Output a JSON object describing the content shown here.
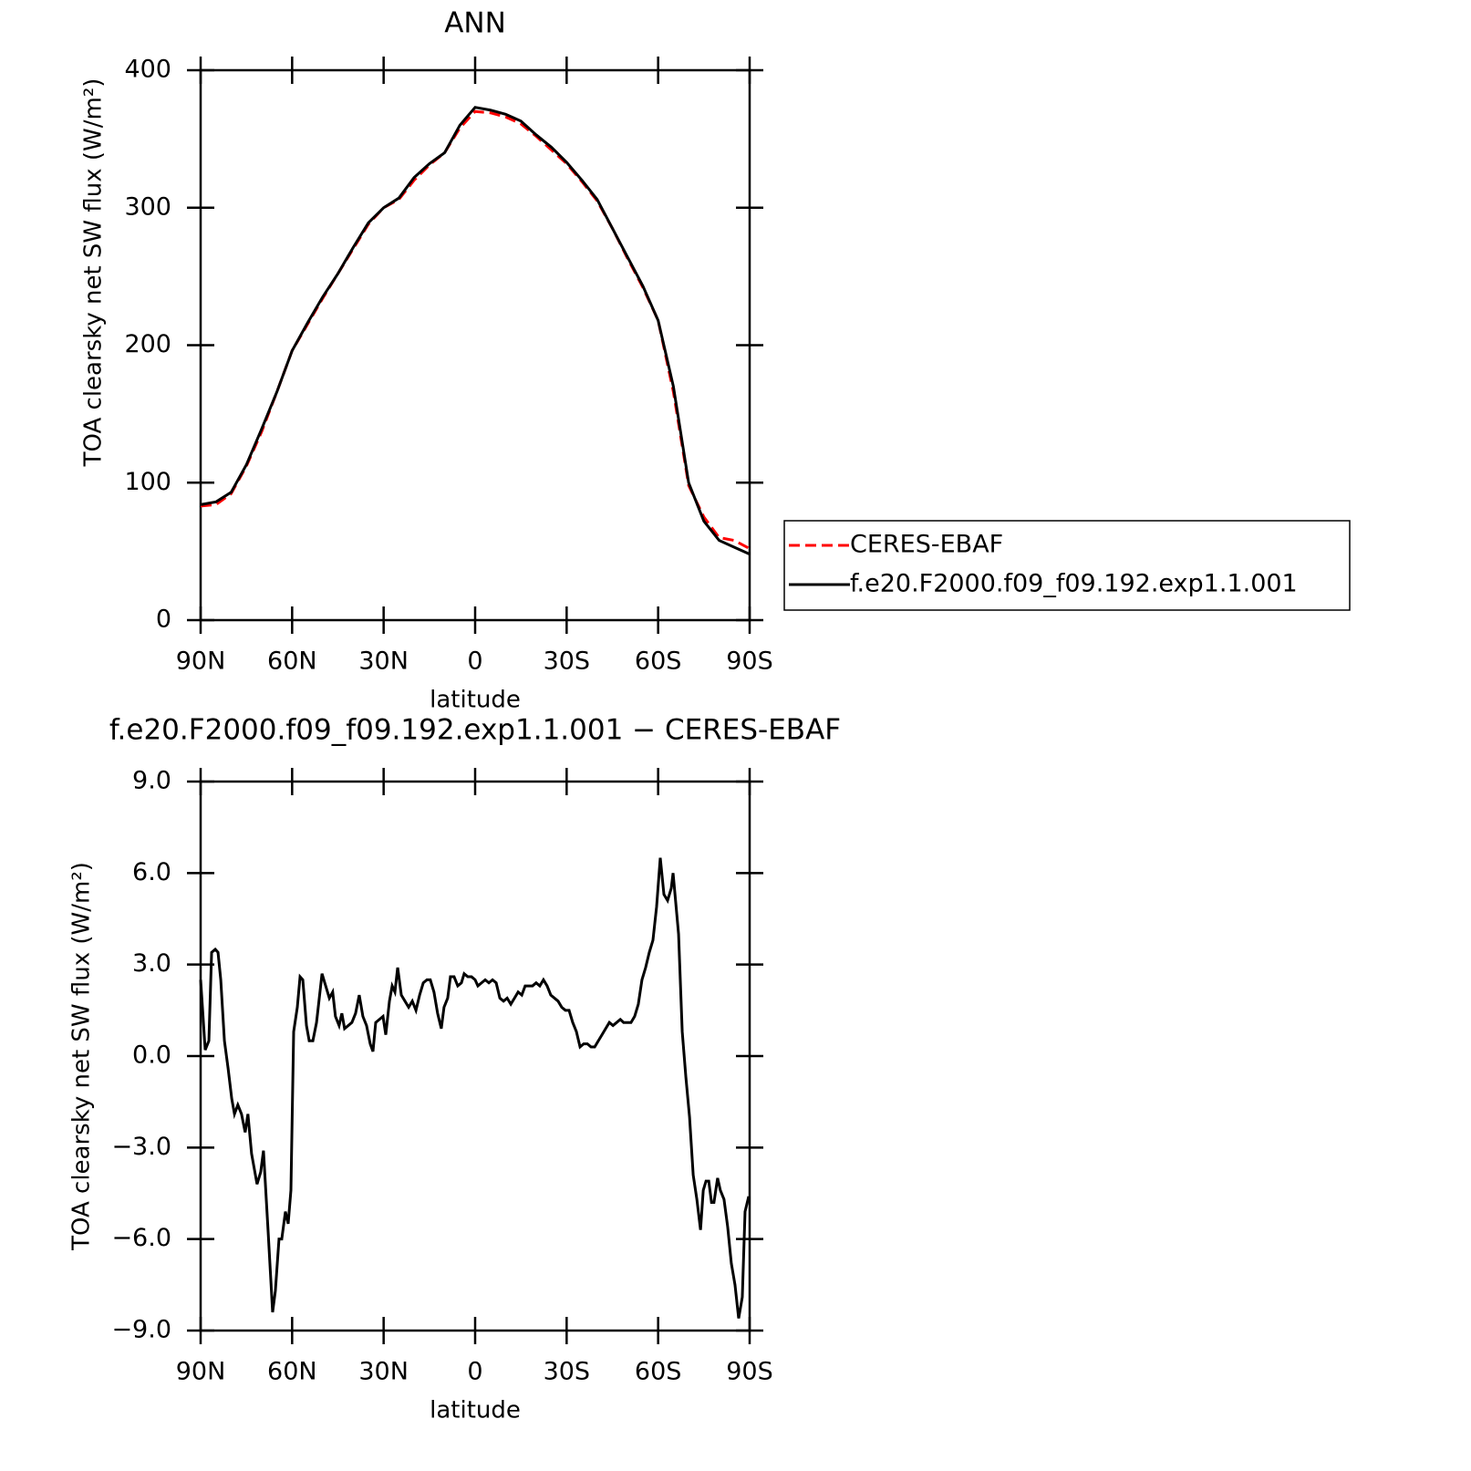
{
  "chart_data": [
    {
      "type": "line",
      "title": "ANN",
      "xlabel": "latitude",
      "ylabel": "TOA clearsky net SW flux (W/m²)",
      "xlim": [
        90,
        -90
      ],
      "ylim": [
        0,
        400
      ],
      "xticks": [
        {
          "value": 90,
          "label": "90N"
        },
        {
          "value": 60,
          "label": "60N"
        },
        {
          "value": 30,
          "label": "30N"
        },
        0,
        {
          "value": -30,
          "label": "30S"
        },
        {
          "value": -60,
          "label": "60S"
        },
        {
          "value": -90,
          "label": "90S"
        }
      ],
      "yticks": [
        0,
        100,
        200,
        300,
        400
      ],
      "legend_position": "outside right",
      "x": [
        90,
        85,
        80,
        75,
        70,
        65,
        60,
        55,
        50,
        45,
        40,
        35,
        30,
        25,
        20,
        15,
        10,
        5,
        0,
        -5,
        -10,
        -15,
        -20,
        -25,
        -30,
        -35,
        -40,
        -45,
        -50,
        -55,
        -60,
        -65,
        -70,
        -75,
        -80,
        -85,
        -90
      ],
      "series": [
        {
          "name": "CERES-EBAF",
          "color": "#ff0000",
          "line_style": "dashed",
          "values": [
            83,
            84,
            92,
            112,
            137,
            166,
            196,
            215,
            234,
            252,
            270,
            288,
            300,
            306,
            320,
            331,
            340,
            358,
            370,
            369,
            366,
            361,
            352,
            342,
            332,
            319,
            305,
            285,
            263,
            242,
            218,
            166,
            98,
            75,
            60,
            58,
            52
          ]
        },
        {
          "name": "f.e20.F2000.f09_f09.192.exp1.1.001",
          "color": "#000000",
          "line_style": "solid",
          "values": [
            84,
            86,
            93,
            113,
            139,
            166,
            196,
            216,
            235,
            252,
            271,
            289,
            300,
            307,
            322,
            332,
            340,
            360,
            373,
            371,
            368,
            363,
            353,
            344,
            333,
            320,
            306,
            285,
            264,
            243,
            218,
            170,
            100,
            72,
            58,
            53,
            48
          ]
        }
      ]
    },
    {
      "type": "line",
      "title": "f.e20.F2000.f09_f09.192.exp1.1.001 − CERES-EBAF",
      "xlabel": "latitude",
      "ylabel": "TOA clearsky net SW flux (W/m²)",
      "xlim": [
        90,
        -90
      ],
      "ylim": [
        -9,
        9
      ],
      "xticks": [
        {
          "value": 90,
          "label": "90N"
        },
        {
          "value": 60,
          "label": "60N"
        },
        {
          "value": 30,
          "label": "30N"
        },
        0,
        {
          "value": -30,
          "label": "30S"
        },
        {
          "value": -60,
          "label": "60S"
        },
        {
          "value": -90,
          "label": "90S"
        }
      ],
      "yticks": [
        {
          "value": -9,
          "label": "−9.0"
        },
        {
          "value": -6,
          "label": "−6.0"
        },
        {
          "value": -3,
          "label": "−3.0"
        },
        {
          "value": 0,
          "label": "0.0"
        },
        {
          "value": 3,
          "label": "3.0"
        },
        {
          "value": 6,
          "label": "6.0"
        },
        {
          "value": 9,
          "label": "9.0"
        }
      ],
      "x": [
        90.0,
        88.5,
        87.3,
        86.4,
        85.2,
        84.3,
        83.4,
        82.2,
        81.0,
        79.8,
        78.9,
        77.8,
        76.6,
        75.4,
        74.5,
        73.3,
        71.5,
        70.3,
        69.4,
        67.9,
        66.4,
        65.5,
        64.3,
        63.4,
        62.2,
        61.3,
        60.4,
        59.5,
        58.3,
        57.4,
        56.5,
        55.3,
        54.4,
        53.2,
        52.0,
        51.1,
        50.2,
        49.0,
        47.8,
        46.7,
        45.8,
        44.6,
        43.7,
        42.8,
        41.6,
        40.4,
        39.2,
        38.0,
        36.8,
        35.6,
        34.4,
        33.5,
        32.6,
        31.4,
        30.2,
        29.3,
        28.1,
        27.2,
        26.3,
        25.4,
        24.2,
        23.0,
        21.8,
        20.6,
        19.4,
        18.2,
        17.0,
        15.8,
        14.7,
        13.5,
        12.3,
        11.1,
        10.2,
        9.0,
        8.1,
        6.9,
        5.7,
        4.5,
        3.6,
        2.4,
        1.2,
        0.0,
        -0.9,
        -2.1,
        -3.3,
        -4.5,
        -5.7,
        -6.9,
        -8.1,
        -9.3,
        -10.5,
        -11.7,
        -12.9,
        -14.1,
        -15.3,
        -16.4,
        -17.6,
        -18.8,
        -20.0,
        -21.2,
        -22.4,
        -23.6,
        -24.8,
        -26.0,
        -27.2,
        -28.4,
        -29.6,
        -30.8,
        -32.0,
        -33.2,
        -34.4,
        -35.6,
        -36.8,
        -38.0,
        -39.2,
        -40.4,
        -41.6,
        -42.8,
        -44.0,
        -45.2,
        -46.4,
        -47.6,
        -48.7,
        -49.9,
        -51.1,
        -52.3,
        -53.5,
        -54.7,
        -55.9,
        -57.1,
        -58.3,
        -59.5,
        -60.7,
        -61.9,
        -63.1,
        -64.3,
        -64.9,
        -66.7,
        -67.9,
        -69.1,
        -70.3,
        -71.5,
        -72.7,
        -73.9,
        -74.8,
        -75.7,
        -76.6,
        -77.5,
        -78.3,
        -79.5,
        -80.4,
        -81.6,
        -82.8,
        -84.0,
        -85.2,
        -86.4,
        -87.6,
        -88.5,
        -89.7
      ],
      "series": [
        {
          "color": "#000000",
          "line_style": "solid",
          "values": [
            2.5,
            0.2,
            0.5,
            3.4,
            3.5,
            3.4,
            2.5,
            0.5,
            -0.4,
            -1.4,
            -1.9,
            -1.6,
            -1.9,
            -2.5,
            -1.9,
            -3.2,
            -4.2,
            -3.8,
            -3.1,
            -5.7,
            -8.4,
            -7.7,
            -6.0,
            -6.0,
            -5.1,
            -5.5,
            -4.4,
            0.8,
            1.6,
            2.6,
            2.5,
            1.0,
            0.5,
            0.5,
            1.1,
            1.9,
            2.7,
            2.3,
            1.9,
            2.1,
            1.3,
            1.0,
            1.4,
            0.9,
            1.0,
            1.1,
            1.4,
            2.0,
            1.3,
            1.0,
            0.4,
            0.15,
            1.1,
            1.2,
            1.3,
            0.7,
            1.8,
            2.3,
            2.1,
            2.9,
            2.0,
            1.8,
            1.6,
            1.8,
            1.5,
            2.0,
            2.4,
            2.5,
            2.5,
            2.1,
            1.4,
            0.9,
            1.6,
            1.9,
            2.6,
            2.6,
            2.3,
            2.4,
            2.7,
            2.6,
            2.6,
            2.5,
            2.3,
            2.4,
            2.5,
            2.4,
            2.5,
            2.4,
            1.9,
            1.8,
            1.9,
            1.7,
            1.9,
            2.1,
            2.0,
            2.3,
            2.3,
            2.3,
            2.4,
            2.3,
            2.5,
            2.3,
            2.0,
            1.9,
            1.8,
            1.6,
            1.5,
            1.5,
            1.1,
            0.8,
            0.3,
            0.4,
            0.4,
            0.3,
            0.3,
            0.5,
            0.7,
            0.9,
            1.1,
            1.0,
            1.1,
            1.2,
            1.1,
            1.1,
            1.1,
            1.3,
            1.7,
            2.5,
            2.9,
            3.4,
            3.8,
            4.9,
            6.5,
            5.3,
            5.1,
            5.5,
            6.0,
            4.0,
            0.8,
            -0.7,
            -2.0,
            -3.9,
            -4.7,
            -5.7,
            -4.4,
            -4.1,
            -4.1,
            -4.8,
            -4.8,
            -4.0,
            -4.4,
            -4.7,
            -5.6,
            -6.8,
            -7.5,
            -8.6,
            -7.9,
            -5.1,
            -4.6
          ]
        }
      ]
    }
  ]
}
